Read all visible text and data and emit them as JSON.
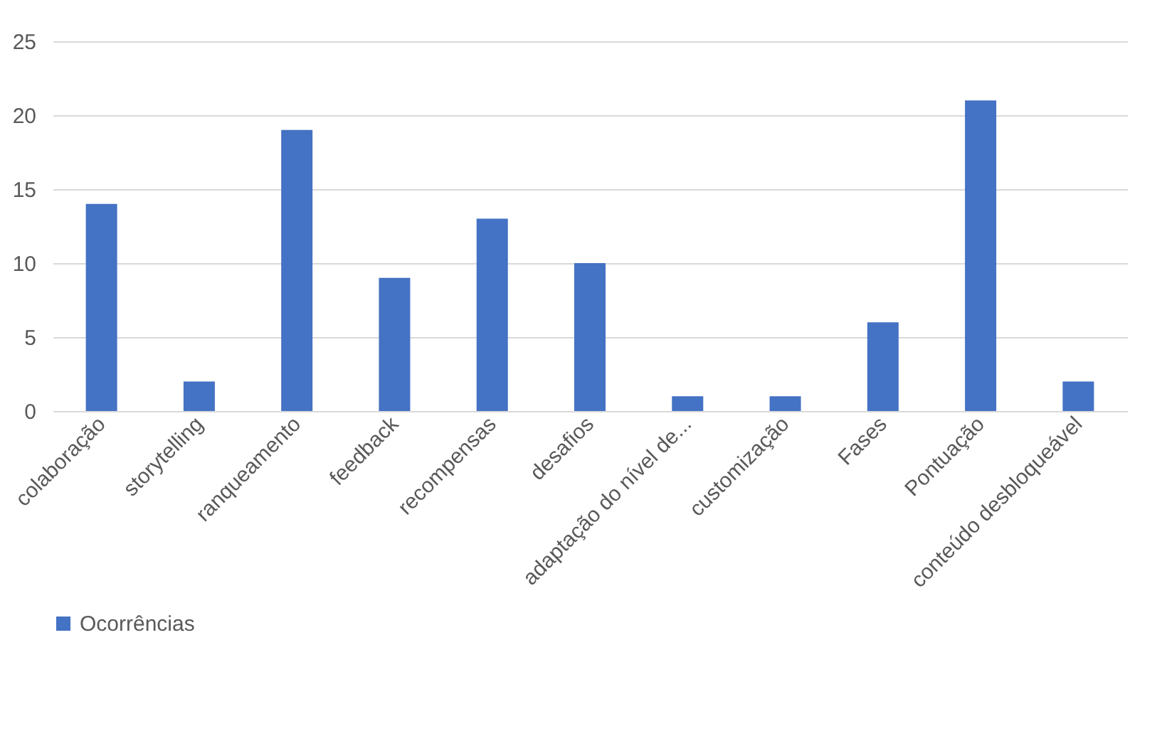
{
  "chart_data": {
    "type": "bar",
    "categories": [
      "colaboração",
      "storytelling",
      "ranqueamento",
      "feedback",
      "recompensas",
      "desafios",
      "adaptação do nível de...",
      "customização",
      "Fases",
      "Pontuação",
      "conteúdo desbloqueável"
    ],
    "series": [
      {
        "name": "Ocorrências",
        "color": "#4472c4",
        "values": [
          14,
          2,
          19,
          9,
          13,
          10,
          1,
          1,
          6,
          21,
          2
        ]
      }
    ],
    "ylim": [
      0,
      25
    ],
    "yticks": [
      0,
      5,
      10,
      15,
      20,
      25
    ],
    "grid": "y",
    "legend": "bottom"
  }
}
